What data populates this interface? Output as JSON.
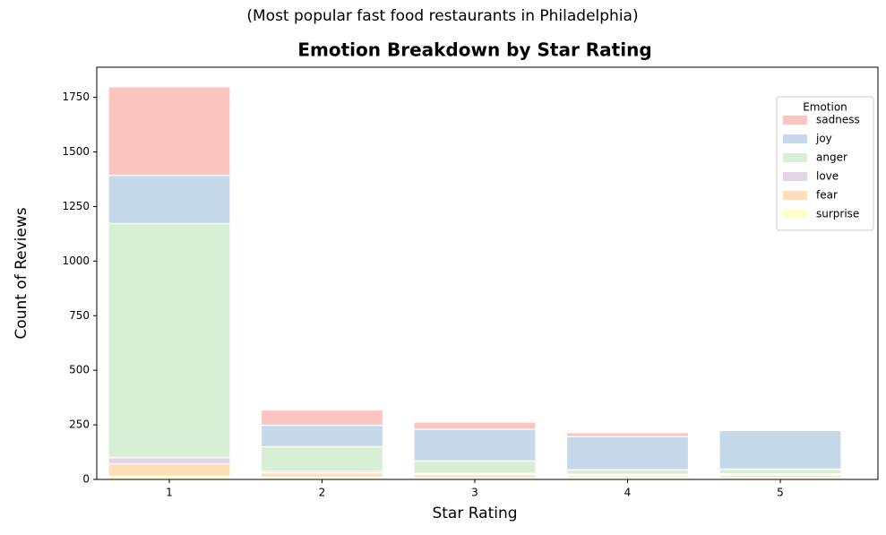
{
  "chart_data": {
    "type": "bar",
    "stacked": true,
    "suptitle": "(Most popular fast food restaurants in Philadelphia)",
    "title": "Emotion Breakdown by Star Rating",
    "x_label": "Star Rating",
    "y_label": "Count of Reviews",
    "legend_title": "Emotion",
    "legend_position": "upper right",
    "categories": [
      "1",
      "2",
      "3",
      "4",
      "5"
    ],
    "series": [
      {
        "name": "sadness",
        "color": "#fcc5c0",
        "values": [
          405,
          70,
          33,
          18,
          2
        ]
      },
      {
        "name": "joy",
        "color": "#c6d9ea",
        "values": [
          221,
          98,
          145,
          152,
          178
        ]
      },
      {
        "name": "anger",
        "color": "#d7efd4",
        "values": [
          1072,
          112,
          57,
          20,
          21
        ]
      },
      {
        "name": "love",
        "color": "#e4d4e8",
        "values": [
          28,
          8,
          6,
          6,
          6
        ]
      },
      {
        "name": "fear",
        "color": "#fedfb9",
        "values": [
          57,
          20,
          14,
          10,
          12
        ]
      },
      {
        "name": "surprise",
        "color": "#ffffcc",
        "values": [
          15,
          10,
          8,
          8,
          8
        ]
      }
    ],
    "ylim": [
      0,
      1888
    ],
    "yticks": [
      0,
      250,
      500,
      750,
      1000,
      1250,
      1500,
      1750
    ]
  }
}
